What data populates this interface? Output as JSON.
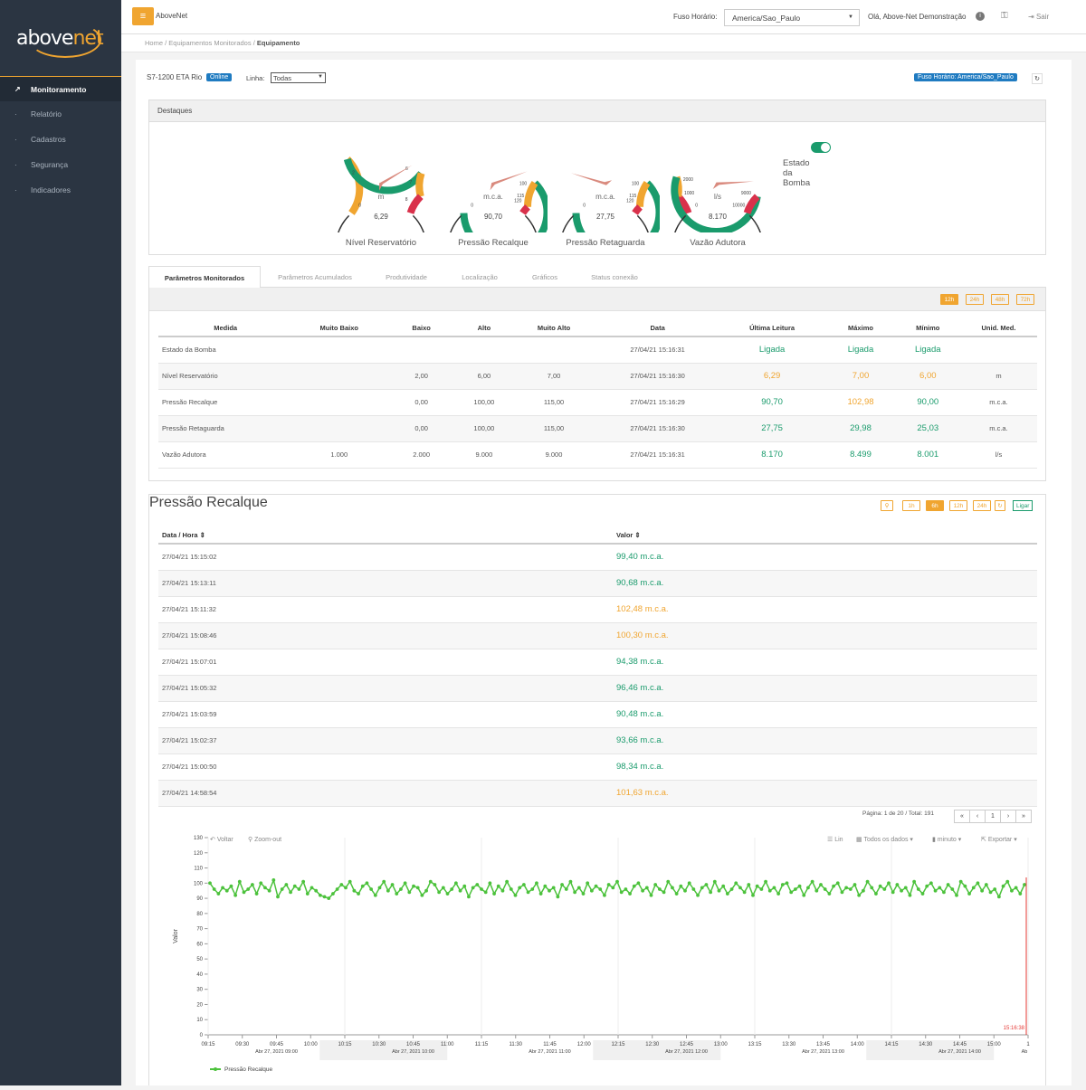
{
  "brand": {
    "a": "above",
    "b": "net"
  },
  "nav": [
    {
      "icon": "chart-line-icon",
      "label": "Monitoramento",
      "active": true
    },
    {
      "icon": "file-icon",
      "label": "Relatório"
    },
    {
      "icon": "gear-icon",
      "label": "Cadastros"
    },
    {
      "icon": "shield-icon",
      "label": "Segurança"
    },
    {
      "icon": "chart-area-icon",
      "label": "Indicadores"
    }
  ],
  "topbar": {
    "menu": "≡",
    "app": "AboveNet",
    "tz_label": "Fuso Horário:",
    "tz_value": "America/Sao_Paulo",
    "greeting": "Olá, Above-Net Demonstração",
    "logout": "Sair"
  },
  "crumb": {
    "home": "Home",
    "sep": "/",
    "mid": "Equipamentos Monitorados",
    "cur": "Equipamento"
  },
  "equipment": {
    "name": "S7-1200 ETA Rio",
    "status": "Online",
    "linha_label": "Linha:",
    "linha_value": "Todas",
    "tz_badge": "Fuso Horário: America/Sao_Paulo"
  },
  "highlights": {
    "title": "Destaques",
    "gauges": [
      {
        "label": "Nível Reservatório",
        "unit": "m",
        "value": "6,29",
        "ticks": [
          "0",
          "2",
          "6",
          "7",
          "8"
        ]
      },
      {
        "label": "Pressão Recalque",
        "unit": "m.c.a.",
        "value": "90,70",
        "ticks": [
          "0",
          "100",
          "115",
          "120"
        ]
      },
      {
        "label": "Pressão Retaguarda",
        "unit": "m.c.a.",
        "value": "27,75",
        "ticks": [
          "0",
          "100",
          "115",
          "120"
        ]
      },
      {
        "label": "Vazão Adutora",
        "unit": "l/s",
        "value": "8.170",
        "ticks": [
          "0",
          "1000",
          "2000",
          "9000",
          "10000"
        ]
      }
    ],
    "pump": "Estado da Bomba"
  },
  "tabs": [
    "Parâmetros Monitorados",
    "Parâmetros Acumulados",
    "Produtividade",
    "Localização",
    "Gráficos",
    "Status conexão"
  ],
  "ranges": [
    "12h",
    "24h",
    "48h",
    "72h"
  ],
  "params": {
    "headers": [
      "Medida",
      "Muito Baixo",
      "Baixo",
      "Alto",
      "Muito Alto",
      "Data",
      "Última Leitura",
      "Máximo",
      "Mínimo",
      "Unid. Med."
    ],
    "rows": [
      [
        "Estado da Bomba",
        "",
        "",
        "",
        "",
        "27/04/21 15:16:31",
        "Ligada",
        "Ligada",
        "Ligada",
        ""
      ],
      [
        "Nível Reservatório",
        "",
        "2,00",
        "6,00",
        "7,00",
        "27/04/21 15:16:30",
        "6,29",
        "7,00",
        "6,00",
        "m"
      ],
      [
        "Pressão Recalque",
        "",
        "0,00",
        "100,00",
        "115,00",
        "27/04/21 15:16:29",
        "90,70",
        "102,98",
        "90,00",
        "m.c.a."
      ],
      [
        "Pressão Retaguarda",
        "",
        "0,00",
        "100,00",
        "115,00",
        "27/04/21 15:16:30",
        "27,75",
        "29,98",
        "25,03",
        "m.c.a."
      ],
      [
        "Vazão Adutora",
        "1.000",
        "2.000",
        "9.000",
        "9.000",
        "27/04/21 15:16:31",
        "8.170",
        "8.499",
        "8.001",
        "l/s"
      ]
    ],
    "colors": [
      [
        "g",
        "g",
        "g"
      ],
      [
        "o",
        "o",
        "o"
      ],
      [
        "g",
        "o",
        "g"
      ],
      [
        "g",
        "g",
        "g"
      ],
      [
        "g",
        "g",
        "g"
      ]
    ]
  },
  "history": {
    "title": "Pressão Recalque",
    "buttons": [
      "1h",
      "6h",
      "12h",
      "24h"
    ],
    "ligar": "Ligar",
    "headers": [
      "Data / Hora ⇕",
      "Valor ⇕"
    ],
    "rows": [
      [
        "27/04/21 15:15:02",
        "99,40 m.c.a.",
        "g"
      ],
      [
        "27/04/21 15:13:11",
        "90,68 m.c.a.",
        "g"
      ],
      [
        "27/04/21 15:11:32",
        "102,48 m.c.a.",
        "o"
      ],
      [
        "27/04/21 15:08:46",
        "100,30 m.c.a.",
        "o"
      ],
      [
        "27/04/21 15:07:01",
        "94,38 m.c.a.",
        "g"
      ],
      [
        "27/04/21 15:05:32",
        "96,46 m.c.a.",
        "g"
      ],
      [
        "27/04/21 15:03:59",
        "90,48 m.c.a.",
        "g"
      ],
      [
        "27/04/21 15:02:37",
        "93,66 m.c.a.",
        "g"
      ],
      [
        "27/04/21 15:00:50",
        "98,34 m.c.a.",
        "g"
      ],
      [
        "27/04/21 14:58:54",
        "101,63 m.c.a.",
        "o"
      ]
    ],
    "pagination": "Página: 1 de 20 / Total: 191",
    "pages": [
      "«",
      "‹",
      "1",
      "›",
      "»"
    ]
  },
  "chart_tools": {
    "back": "Voltar",
    "zoom": "Zoom-out",
    "lin": "Lin",
    "all": "Todos os dados ▾",
    "unit": "minuto ▾",
    "export": "Exportar ▾"
  },
  "chart_data": {
    "type": "line",
    "ylabel": "Valor",
    "ylim": [
      0,
      130
    ],
    "yticks": [
      0,
      10,
      20,
      30,
      40,
      50,
      60,
      70,
      80,
      90,
      100,
      110,
      120,
      130
    ],
    "xticks": [
      "09:15",
      "09:30",
      "09:45",
      "10:00",
      "10:15",
      "10:30",
      "10:45",
      "11:00",
      "11:15",
      "11:30",
      "11:45",
      "12:00",
      "12:15",
      "12:30",
      "12:45",
      "13:00",
      "13:15",
      "13:30",
      "13:45",
      "14:00",
      "14:15",
      "14:30",
      "14:45",
      "15:00",
      "1"
    ],
    "xdates": [
      "Abr 27, 2021 09:00",
      "Abr 27, 2021 10:00",
      "Abr 27, 2021 11:00",
      "Abr 27, 2021 12:00",
      "Abr 27, 2021 13:00",
      "Abr 27, 2021 14:00",
      "Ab"
    ],
    "cursor": "15:16:38",
    "series": [
      {
        "name": "Pressão Recalque",
        "color": "#4cc23c",
        "values": [
          100,
          96,
          93,
          97,
          95,
          98,
          92,
          101,
          94,
          96,
          99,
          93,
          100,
          97,
          95,
          102,
          91,
          96,
          99,
          94,
          98,
          96,
          101,
          93,
          97,
          95,
          92,
          91,
          90,
          93,
          96,
          99,
          97,
          101,
          95,
          93,
          98,
          100,
          96,
          92,
          97,
          101,
          95,
          99,
          93,
          96,
          100,
          94,
          98,
          97,
          92,
          95,
          101,
          99,
          94,
          97,
          93,
          96,
          100,
          95,
          98,
          91,
          97,
          99,
          96,
          94,
          100,
          93,
          98,
          95,
          101,
          96,
          92,
          97,
          99,
          94,
          96,
          100,
          93,
          98,
          95,
          97,
          91,
          99,
          96,
          101,
          94,
          97,
          93,
          100,
          95,
          98,
          96,
          92,
          99,
          97,
          101,
          94,
          96,
          93,
          98,
          100,
          95,
          97,
          92,
          99,
          96,
          94,
          101,
          97,
          93,
          98,
          95,
          100,
          96,
          92,
          97,
          99,
          94,
          101,
          95,
          98,
          93,
          96,
          100,
          97,
          94,
          99,
          92,
          98,
          96,
          101,
          95,
          97,
          93,
          99,
          100,
          94,
          96,
          98,
          92,
          97,
          101,
          95,
          99,
          96,
          93,
          98,
          100,
          94,
          97,
          96,
          99,
          92,
          95,
          101,
          97,
          93,
          98,
          96,
          100,
          94,
          99,
          95,
          97,
          92,
          101,
          96,
          93,
          98,
          100,
          95,
          97,
          94,
          99,
          96,
          92,
          101,
          98,
          93,
          97,
          100,
          95,
          99,
          94,
          96,
          91,
          98,
          101,
          95,
          97,
          93,
          99
        ]
      }
    ]
  }
}
